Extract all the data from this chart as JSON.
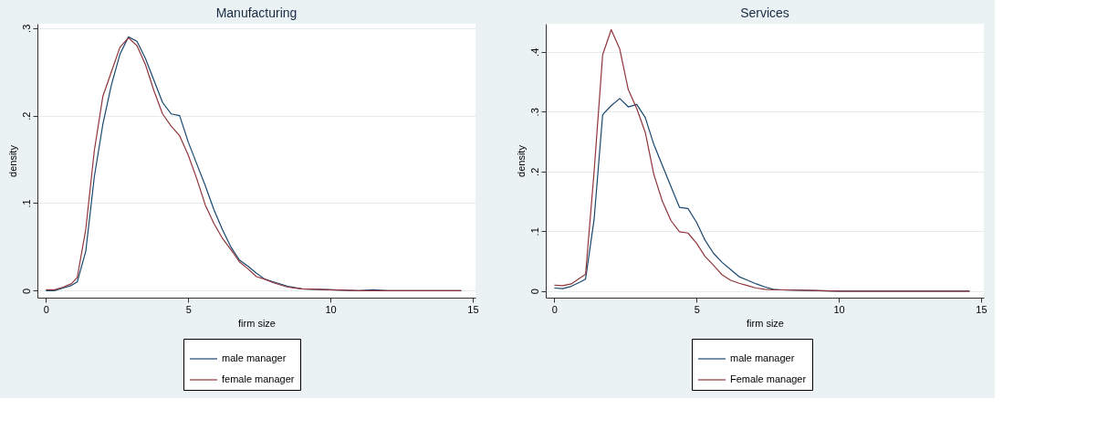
{
  "chart_data": [
    {
      "type": "line",
      "title": "Manufacturing",
      "xlabel": "firm size",
      "ylabel": "density",
      "xlim": [
        -0.3,
        15.1
      ],
      "ylim": [
        -0.008,
        0.305
      ],
      "xticks": [
        0,
        5,
        10,
        15
      ],
      "yticks": [
        0,
        {
          "value": 0.1,
          "label": ".1"
        },
        {
          "value": 0.2,
          "label": ".2"
        },
        {
          "value": 0.3,
          "label": ".3"
        }
      ],
      "grid": "y",
      "legend": "bottom",
      "series": [
        {
          "name": "male manager",
          "color": "#1a476f",
          "x": [
            0,
            0.3,
            0.6,
            0.9,
            1.1,
            1.4,
            1.7,
            2.0,
            2.3,
            2.6,
            2.9,
            3.2,
            3.5,
            3.8,
            4.1,
            4.4,
            4.7,
            5.0,
            5.3,
            5.6,
            5.9,
            6.2,
            6.5,
            6.8,
            7.1,
            7.4,
            7.7,
            8.0,
            8.5,
            9,
            10,
            11,
            11.5,
            12,
            14.6
          ],
          "values": [
            0.0,
            0.0,
            0.003,
            0.006,
            0.01,
            0.045,
            0.13,
            0.19,
            0.235,
            0.27,
            0.29,
            0.285,
            0.265,
            0.24,
            0.215,
            0.202,
            0.2,
            0.17,
            0.145,
            0.12,
            0.093,
            0.07,
            0.05,
            0.035,
            0.028,
            0.02,
            0.013,
            0.01,
            0.005,
            0.002,
            0.001,
            0.0,
            0.001,
            0.0,
            0.0
          ]
        },
        {
          "name": "female manager",
          "color": "#90353b",
          "x": [
            0,
            0.3,
            0.6,
            0.9,
            1.1,
            1.4,
            1.7,
            2.0,
            2.3,
            2.6,
            2.9,
            3.2,
            3.5,
            3.8,
            4.1,
            4.4,
            4.7,
            5.0,
            5.3,
            5.6,
            5.9,
            6.2,
            6.5,
            6.8,
            7.1,
            7.4,
            7.7,
            8.0,
            8.5,
            9,
            10,
            11,
            14.6
          ],
          "values": [
            0.001,
            0.001,
            0.004,
            0.008,
            0.015,
            0.07,
            0.16,
            0.222,
            0.25,
            0.278,
            0.289,
            0.28,
            0.258,
            0.228,
            0.202,
            0.188,
            0.177,
            0.155,
            0.128,
            0.098,
            0.077,
            0.06,
            0.047,
            0.033,
            0.025,
            0.016,
            0.013,
            0.009,
            0.004,
            0.002,
            0.001,
            0.0,
            0.0
          ]
        }
      ]
    },
    {
      "type": "line",
      "title": "Services",
      "xlabel": "firm size",
      "ylabel": "density",
      "xlim": [
        -0.3,
        15.1
      ],
      "ylim": [
        -0.011,
        0.447
      ],
      "xticks": [
        0,
        5,
        10,
        15
      ],
      "yticks": [
        0,
        {
          "value": 0.1,
          "label": ".1"
        },
        {
          "value": 0.2,
          "label": ".2"
        },
        {
          "value": 0.3,
          "label": ".3"
        },
        {
          "value": 0.4,
          "label": ".4"
        }
      ],
      "grid": "y",
      "legend": "bottom",
      "series": [
        {
          "name": "male manager",
          "color": "#1a476f",
          "x": [
            0,
            0.3,
            0.6,
            0.9,
            1.1,
            1.4,
            1.7,
            2.0,
            2.3,
            2.6,
            2.9,
            3.2,
            3.5,
            3.8,
            4.1,
            4.4,
            4.7,
            5.0,
            5.3,
            5.6,
            5.9,
            6.2,
            6.5,
            6.8,
            7.1,
            7.4,
            7.7,
            8.0,
            9,
            10,
            14.6
          ],
          "values": [
            0.005,
            0.004,
            0.008,
            0.015,
            0.02,
            0.12,
            0.295,
            0.31,
            0.322,
            0.308,
            0.312,
            0.29,
            0.245,
            0.21,
            0.175,
            0.14,
            0.138,
            0.115,
            0.085,
            0.063,
            0.048,
            0.036,
            0.024,
            0.018,
            0.012,
            0.007,
            0.003,
            0.002,
            0.001,
            0.0,
            0.0
          ]
        },
        {
          "name": "Female manager",
          "color": "#90353b",
          "x": [
            0,
            0.3,
            0.6,
            0.9,
            1.1,
            1.4,
            1.7,
            2.0,
            2.3,
            2.6,
            2.9,
            3.2,
            3.5,
            3.8,
            4.1,
            4.4,
            4.7,
            5.0,
            5.3,
            5.6,
            5.9,
            6.2,
            6.5,
            6.8,
            7.1,
            7.4,
            7.7,
            8.0,
            9,
            10,
            14.6
          ],
          "values": [
            0.01,
            0.009,
            0.012,
            0.022,
            0.028,
            0.2,
            0.395,
            0.437,
            0.405,
            0.337,
            0.305,
            0.265,
            0.195,
            0.15,
            0.118,
            0.099,
            0.097,
            0.08,
            0.058,
            0.043,
            0.027,
            0.018,
            0.013,
            0.009,
            0.005,
            0.003,
            0.002,
            0.002,
            0.001,
            0.0,
            0.0
          ]
        }
      ]
    }
  ]
}
